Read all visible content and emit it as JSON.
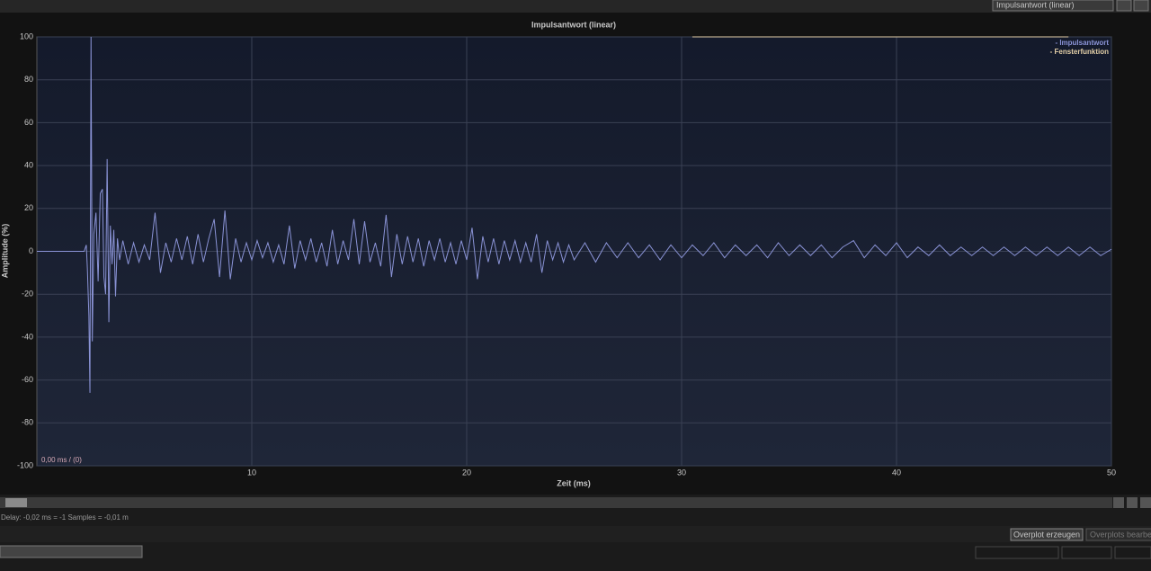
{
  "ui": {
    "view_select": "Impulsantwort (linear)",
    "status": "Delay: -0,02 ms = -1 Samples = -0,01 m",
    "buttons": [
      "Overplot erzeugen",
      "Overplots bearbeiten"
    ]
  },
  "chart_data": {
    "type": "line",
    "title": "Impulsantwort (linear)",
    "x_label": "Zeit (ms)",
    "y_label": "Amplitude (%)",
    "annotation": "0,00 ms / (0)",
    "xlim": [
      0,
      50
    ],
    "xticks": [
      10,
      20,
      30,
      40,
      50
    ],
    "ylim": [
      -100,
      100
    ],
    "yticks": [
      -100,
      -80,
      -60,
      -40,
      -20,
      0,
      20,
      40,
      60,
      80,
      100
    ],
    "grid": true,
    "legend": "upper right",
    "series": [
      {
        "name": "- Impulsantwort",
        "color": "#8a93d6",
        "x": [
          0,
          2.2,
          2.3,
          2.35,
          2.42,
          2.47,
          2.52,
          2.58,
          2.65,
          2.75,
          2.85,
          2.95,
          3.05,
          3.12,
          3.2,
          3.27,
          3.35,
          3.42,
          3.5,
          3.58,
          3.66,
          3.75,
          3.85,
          4.0,
          4.25,
          4.5,
          4.75,
          5.0,
          5.25,
          5.5,
          5.75,
          6.0,
          6.25,
          6.5,
          6.75,
          7.0,
          7.25,
          7.5,
          7.75,
          8.0,
          8.25,
          8.5,
          8.75,
          9.0,
          9.25,
          9.5,
          9.75,
          10.0,
          10.25,
          10.5,
          10.75,
          11.0,
          11.25,
          11.5,
          11.75,
          12.0,
          12.25,
          12.5,
          12.75,
          13.0,
          13.25,
          13.5,
          13.75,
          14.0,
          14.25,
          14.5,
          14.75,
          15.0,
          15.25,
          15.5,
          15.75,
          16.0,
          16.25,
          16.5,
          16.75,
          17.0,
          17.25,
          17.5,
          17.75,
          18.0,
          18.25,
          18.5,
          18.75,
          19.0,
          19.25,
          19.5,
          19.75,
          20.0,
          20.25,
          20.5,
          20.75,
          21.0,
          21.25,
          21.5,
          21.75,
          22.0,
          22.25,
          22.5,
          22.75,
          23.0,
          23.25,
          23.5,
          23.75,
          24.0,
          24.25,
          24.5,
          24.75,
          25,
          25.5,
          26,
          26.5,
          27,
          27.5,
          28,
          28.5,
          29,
          29.5,
          30,
          30.5,
          31,
          31.5,
          32,
          32.5,
          33,
          33.5,
          34,
          34.5,
          35,
          35.5,
          36,
          36.5,
          37,
          37.5,
          38,
          38.5,
          39,
          39.5,
          40,
          40.5,
          41,
          41.5,
          42,
          42.5,
          43,
          43.5,
          44,
          44.5,
          45,
          45.5,
          46,
          46.5,
          47,
          47.5,
          48,
          48.5,
          49,
          49.5,
          50
        ],
        "values": [
          0,
          0,
          3,
          -8,
          -30,
          -66,
          100,
          -42,
          8,
          18,
          -14,
          27,
          29,
          -12,
          -20,
          43,
          -33,
          12,
          -6,
          10,
          -21,
          6,
          -4,
          5,
          -6,
          4,
          -5,
          3,
          -4,
          18,
          -10,
          4,
          -5,
          6,
          -4,
          7,
          -6,
          8,
          -5,
          6,
          15,
          -12,
          19,
          -13,
          6,
          -5,
          4,
          -4,
          5,
          -3,
          4,
          -5,
          3,
          -6,
          12,
          -8,
          5,
          -4,
          6,
          -5,
          4,
          -7,
          10,
          -6,
          5,
          -4,
          15,
          -6,
          14,
          -5,
          4,
          -7,
          17,
          -12,
          8,
          -6,
          7,
          -5,
          6,
          -7,
          5,
          -4,
          6,
          -5,
          4,
          -6,
          5,
          -4,
          11,
          -13,
          7,
          -5,
          6,
          -6,
          5,
          -4,
          5,
          -5,
          4,
          -5,
          8,
          -10,
          5,
          -4,
          4,
          -5,
          3,
          -4,
          4,
          -5,
          4,
          -3,
          4,
          -3,
          3,
          -4,
          3,
          -3,
          3,
          -2,
          4,
          -3,
          3,
          -2,
          3,
          -3,
          4,
          -2,
          3,
          -2,
          3,
          -3,
          2,
          5,
          -3,
          3,
          -2,
          4,
          -3,
          2,
          -2,
          3,
          -2,
          2,
          -2,
          2,
          -2,
          2,
          -2,
          2,
          -2,
          2,
          -2,
          2,
          -2,
          2,
          -2,
          1
        ]
      },
      {
        "name": "- Fensterfunktion",
        "color": "#e3cfa8",
        "x": [
          30.5,
          48
        ],
        "values": [
          100,
          100
        ]
      }
    ]
  }
}
